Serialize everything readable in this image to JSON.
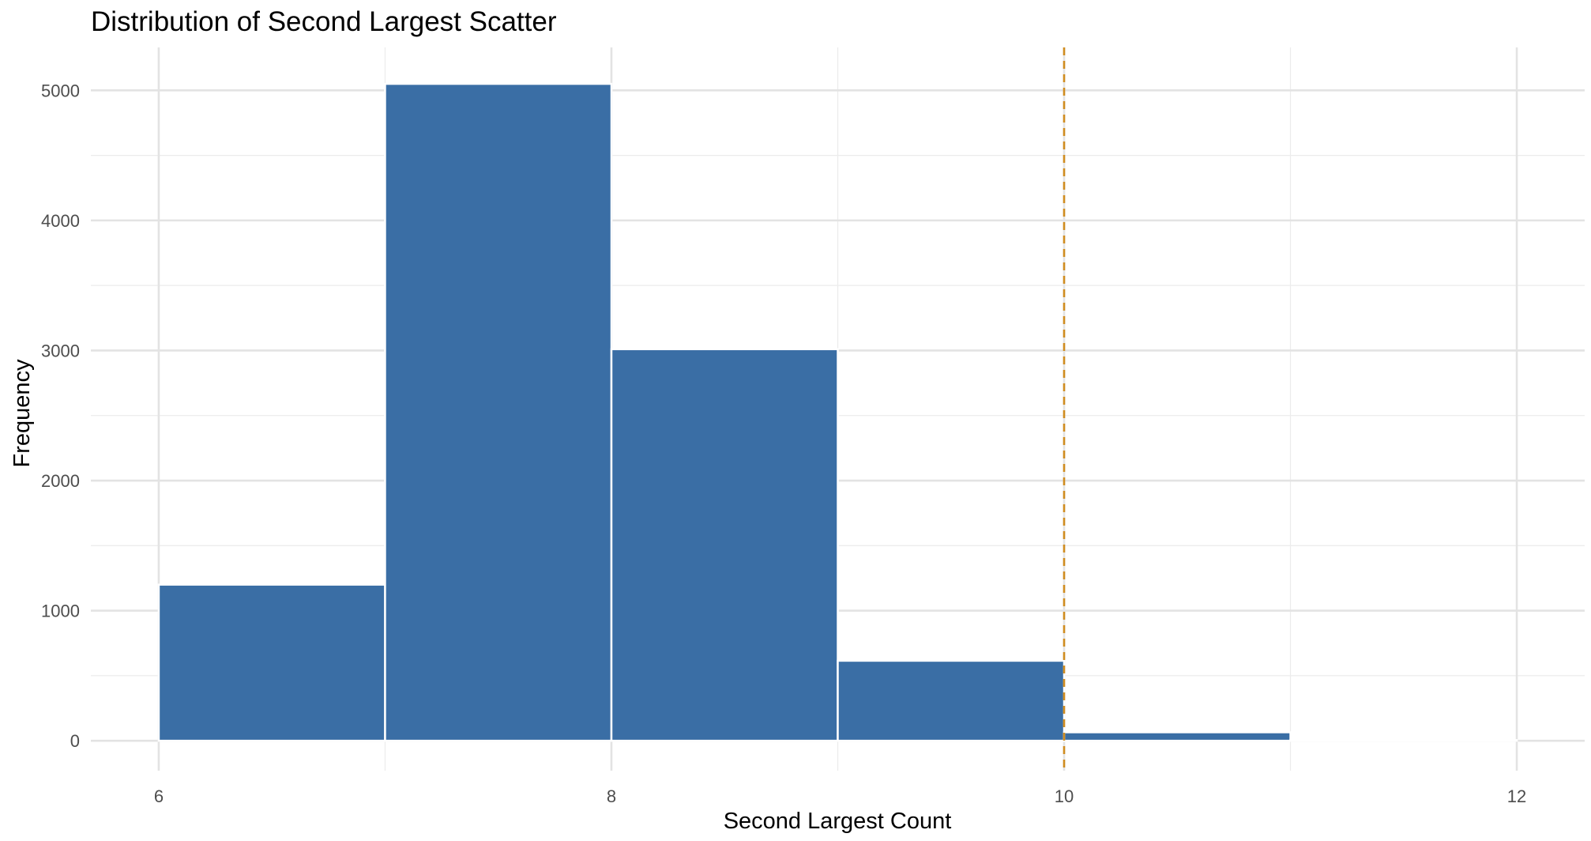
{
  "chart_data": {
    "type": "bar",
    "subtype": "histogram",
    "title": "Distribution of Second Largest Scatter",
    "xlabel": "Second Largest Count",
    "ylabel": "Frequency",
    "bins": [
      {
        "x0": 6,
        "x1": 7,
        "value": 1200
      },
      {
        "x0": 7,
        "x1": 8,
        "value": 5050
      },
      {
        "x0": 8,
        "x1": 9,
        "value": 3010
      },
      {
        "x0": 9,
        "x1": 10,
        "value": 615
      },
      {
        "x0": 10,
        "x1": 11,
        "value": 65
      },
      {
        "x0": 11,
        "x1": 12,
        "value": 5
      }
    ],
    "xlim": [
      5.7,
      12.3
    ],
    "ylim": [
      -230,
      5330
    ],
    "xticks": [
      6,
      8,
      10,
      12
    ],
    "yticks": [
      0,
      1000,
      2000,
      3000,
      4000,
      5000
    ],
    "reference_line": {
      "x": 10,
      "style": "dashed",
      "color": "#d08c1f"
    },
    "bar_color": "#3a6ea5",
    "bar_edge_color": "#ffffff",
    "grid": true,
    "legend": "none"
  }
}
